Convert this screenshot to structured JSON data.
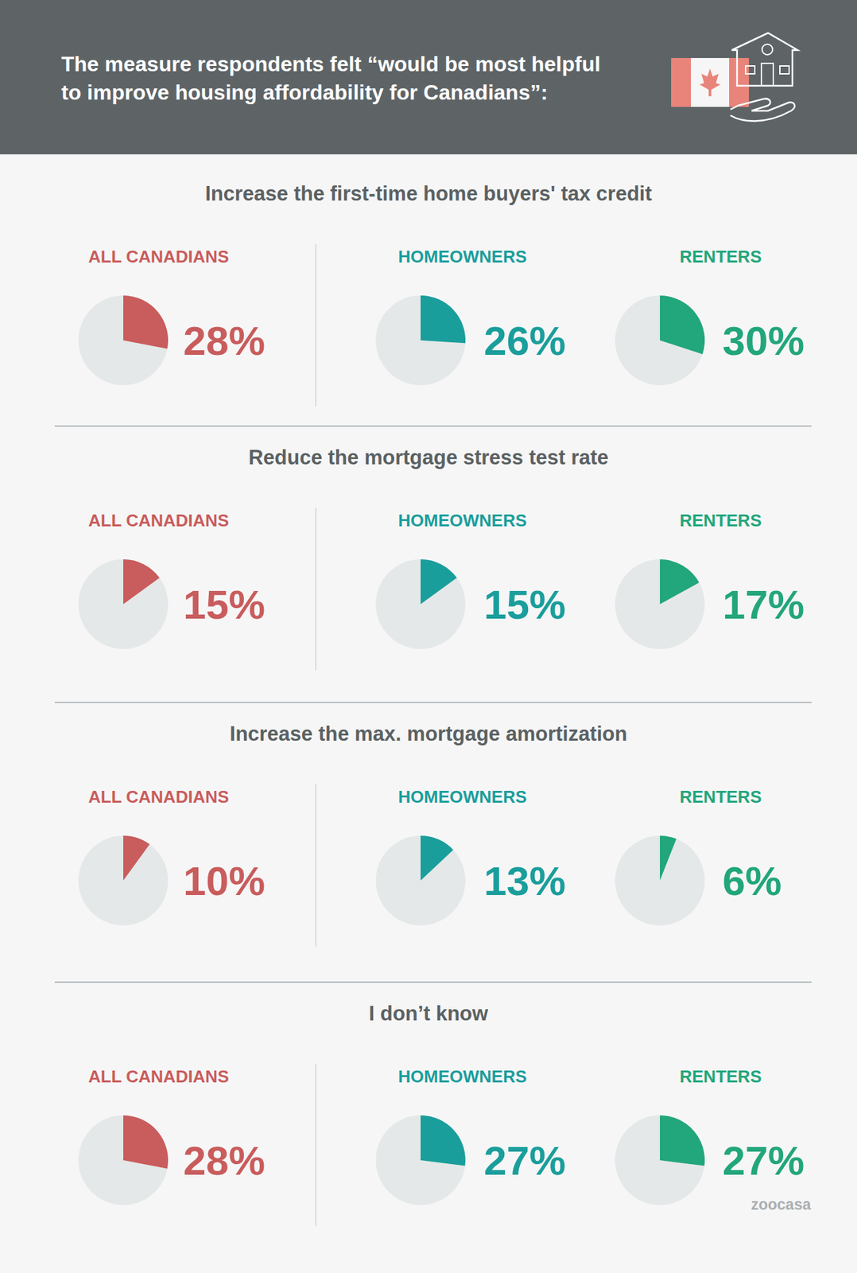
{
  "header": {
    "title_lines": [
      "The measure respondents felt “would be most helpful",
      "to improve housing affordability for Canadians”:"
    ]
  },
  "chart_data": [
    {
      "type": "pie",
      "title": "Increase the first-time home buyers' tax credit",
      "categories": [
        "ALL CANADIANS",
        "HOMEOWNERS",
        "RENTERS"
      ],
      "values": [
        28,
        26,
        30
      ],
      "value_labels": [
        "28%",
        "26%",
        "30%"
      ],
      "colors": [
        "#c95c5c",
        "#1a9e9c",
        "#22a67b"
      ],
      "data_labels": true
    },
    {
      "type": "pie",
      "title": "Reduce the mortgage stress test rate",
      "categories": [
        "ALL CANADIANS",
        "HOMEOWNERS",
        "RENTERS"
      ],
      "values": [
        15,
        15,
        17
      ],
      "value_labels": [
        "15%",
        "15%",
        "17%"
      ],
      "colors": [
        "#c95c5c",
        "#1a9e9c",
        "#22a67b"
      ],
      "data_labels": true
    },
    {
      "type": "pie",
      "title": "Increase the max. mortgage amortization",
      "categories": [
        "ALL CANADIANS",
        "HOMEOWNERS",
        "RENTERS"
      ],
      "values": [
        10,
        13,
        6
      ],
      "value_labels": [
        "10%",
        "13%",
        "6%"
      ],
      "colors": [
        "#c95c5c",
        "#1a9e9c",
        "#22a67b"
      ],
      "data_labels": true
    },
    {
      "type": "pie",
      "title": "I don’t know",
      "categories": [
        "ALL CANADIANS",
        "HOMEOWNERS",
        "RENTERS"
      ],
      "values": [
        28,
        27,
        27
      ],
      "value_labels": [
        "28%",
        "27%",
        "27%"
      ],
      "colors": [
        "#c95c5c",
        "#1a9e9c",
        "#22a67b"
      ],
      "data_labels": true
    }
  ],
  "footer": {
    "brand": "zoocasa"
  }
}
